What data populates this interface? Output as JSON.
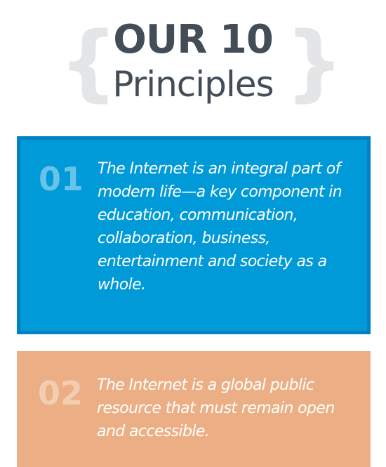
{
  "header": {
    "brace_left": "{",
    "brace_right": "}",
    "title": "OUR 10",
    "subtitle": "Principles"
  },
  "principles": [
    {
      "number": "01",
      "text": "The Internet is an integral part of modern life—a key component in education, communication, collaboration, business, entertainment and society as a whole.",
      "color": "#009ad8",
      "border_color": "#0281c0"
    },
    {
      "number": "02",
      "text": "The Internet is a global public resource that must remain open and accessible.",
      "color": "#ecaf85"
    }
  ],
  "colors": {
    "title": "#424d58",
    "brace": "#e4e5e7"
  }
}
